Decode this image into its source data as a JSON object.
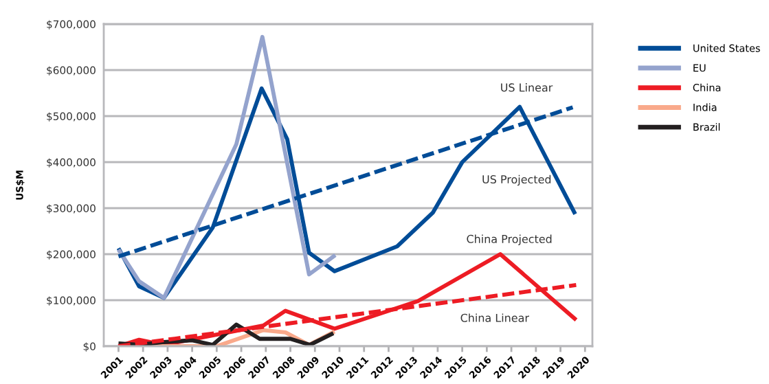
{
  "chart_data": {
    "type": "line",
    "ylabel": "US$M",
    "grid": "y",
    "legend": "right",
    "marker": "none",
    "xlim": [
      2000.4,
      2020.3
    ],
    "xticks": [
      2001,
      2002,
      2003,
      2004,
      2005,
      2006,
      2007,
      2008,
      2009,
      2010,
      2011,
      2012,
      2013,
      2014,
      2015,
      2016,
      2017,
      2018,
      2019,
      2020
    ],
    "ylim": [
      0,
      700000
    ],
    "yticks": [
      {
        "value": 0,
        "label": "$0"
      },
      {
        "value": 100000,
        "label": "$100,000"
      },
      {
        "value": 200000,
        "label": "$200,000"
      },
      {
        "value": 300000,
        "label": "$300,000"
      },
      {
        "value": 400000,
        "label": "$400,000"
      },
      {
        "value": 500000,
        "label": "$500,000"
      },
      {
        "value": 600000,
        "label": "$600,000"
      },
      {
        "value": 700000,
        "label": "$700,000"
      }
    ],
    "series": [
      {
        "name": "United States",
        "color": "#004c97",
        "x": [
          2001,
          2001.84,
          2002.85,
          2004.84,
          2006.83,
          2007.87,
          2008.76,
          2009.8,
          2012.35,
          2013.8,
          2015.0,
          2017.34,
          2019.6
        ],
        "values": [
          213000,
          130000,
          105000,
          258000,
          560000,
          450000,
          203000,
          163000,
          217000,
          290000,
          400000,
          520000,
          287000
        ]
      },
      {
        "name": "EU",
        "color": "#94a3cd",
        "x": [
          2001,
          2001.84,
          2002.85,
          2005.8,
          2006.86,
          2008.76,
          2009.83
        ],
        "values": [
          210000,
          141000,
          105000,
          439000,
          672000,
          156000,
          198000
        ]
      },
      {
        "name": "China",
        "color": "#ed1c24",
        "x": [
          2001,
          2001.84,
          2002.85,
          2006.9,
          2007.8,
          2009.8,
          2013.2,
          2016.55,
          2019.64
        ],
        "values": [
          0,
          14000,
          3000,
          45000,
          77000,
          38000,
          98000,
          200000,
          57000
        ]
      },
      {
        "name": "India",
        "color": "#f9a98b",
        "x": [
          2001,
          2005,
          2006.9,
          2007.8,
          2008.76,
          2009.8
        ],
        "values": [
          0,
          0,
          35000,
          30000,
          3000,
          32000
        ]
      },
      {
        "name": "Brazil",
        "color": "#231f20",
        "x": [
          2001,
          2001.84,
          2002.85,
          2004,
          2004.84,
          2005.8,
          2006.75,
          2008,
          2008.8,
          2009.75
        ],
        "values": [
          6000,
          3000,
          9000,
          13000,
          3000,
          47000,
          16000,
          16000,
          3000,
          28000
        ]
      },
      {
        "color": "#004c97",
        "line_style": "dashed",
        "x": [
          2001,
          2019.5
        ],
        "values": [
          195000,
          519000
        ]
      },
      {
        "color": "#ed1c24",
        "line_style": "dashed",
        "x": [
          2001,
          2019.64
        ],
        "values": [
          0,
          133000
        ]
      }
    ],
    "annotations": [
      "US Linear",
      "US Projected",
      "China Projected",
      "China Linear"
    ]
  }
}
